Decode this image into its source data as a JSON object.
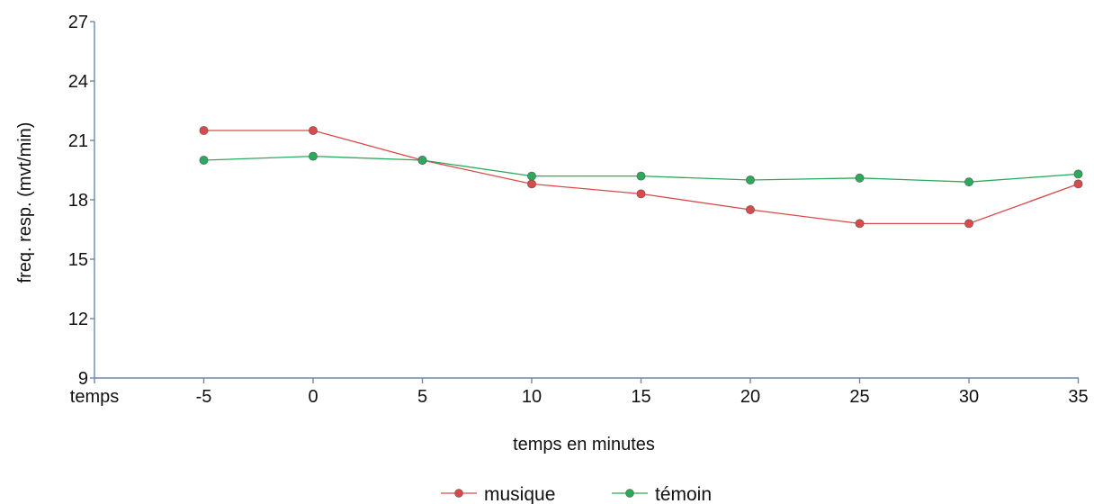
{
  "chart_data": {
    "type": "line",
    "title": "",
    "xlabel": "temps en minutes",
    "ylabel": "freq. resp. (mvt/min)",
    "categories": [
      "temps",
      "-5",
      "0",
      "5",
      "10",
      "15",
      "20",
      "25",
      "30",
      "35"
    ],
    "x": [
      -5,
      0,
      5,
      10,
      15,
      20,
      25,
      30,
      35
    ],
    "ylim": [
      9,
      27
    ],
    "yticks": [
      9,
      12,
      15,
      18,
      21,
      24,
      27
    ],
    "grid": false,
    "legend_position": "bottom-center",
    "series": [
      {
        "name": "musique",
        "color": "#d94a4a",
        "values": [
          21.5,
          21.5,
          20.0,
          18.8,
          18.3,
          17.5,
          16.8,
          16.8,
          18.8
        ]
      },
      {
        "name": "témoin",
        "color": "#2aaa5a",
        "values": [
          20.0,
          20.2,
          20.0,
          19.2,
          19.2,
          19.0,
          19.1,
          18.9,
          19.3
        ]
      }
    ]
  }
}
